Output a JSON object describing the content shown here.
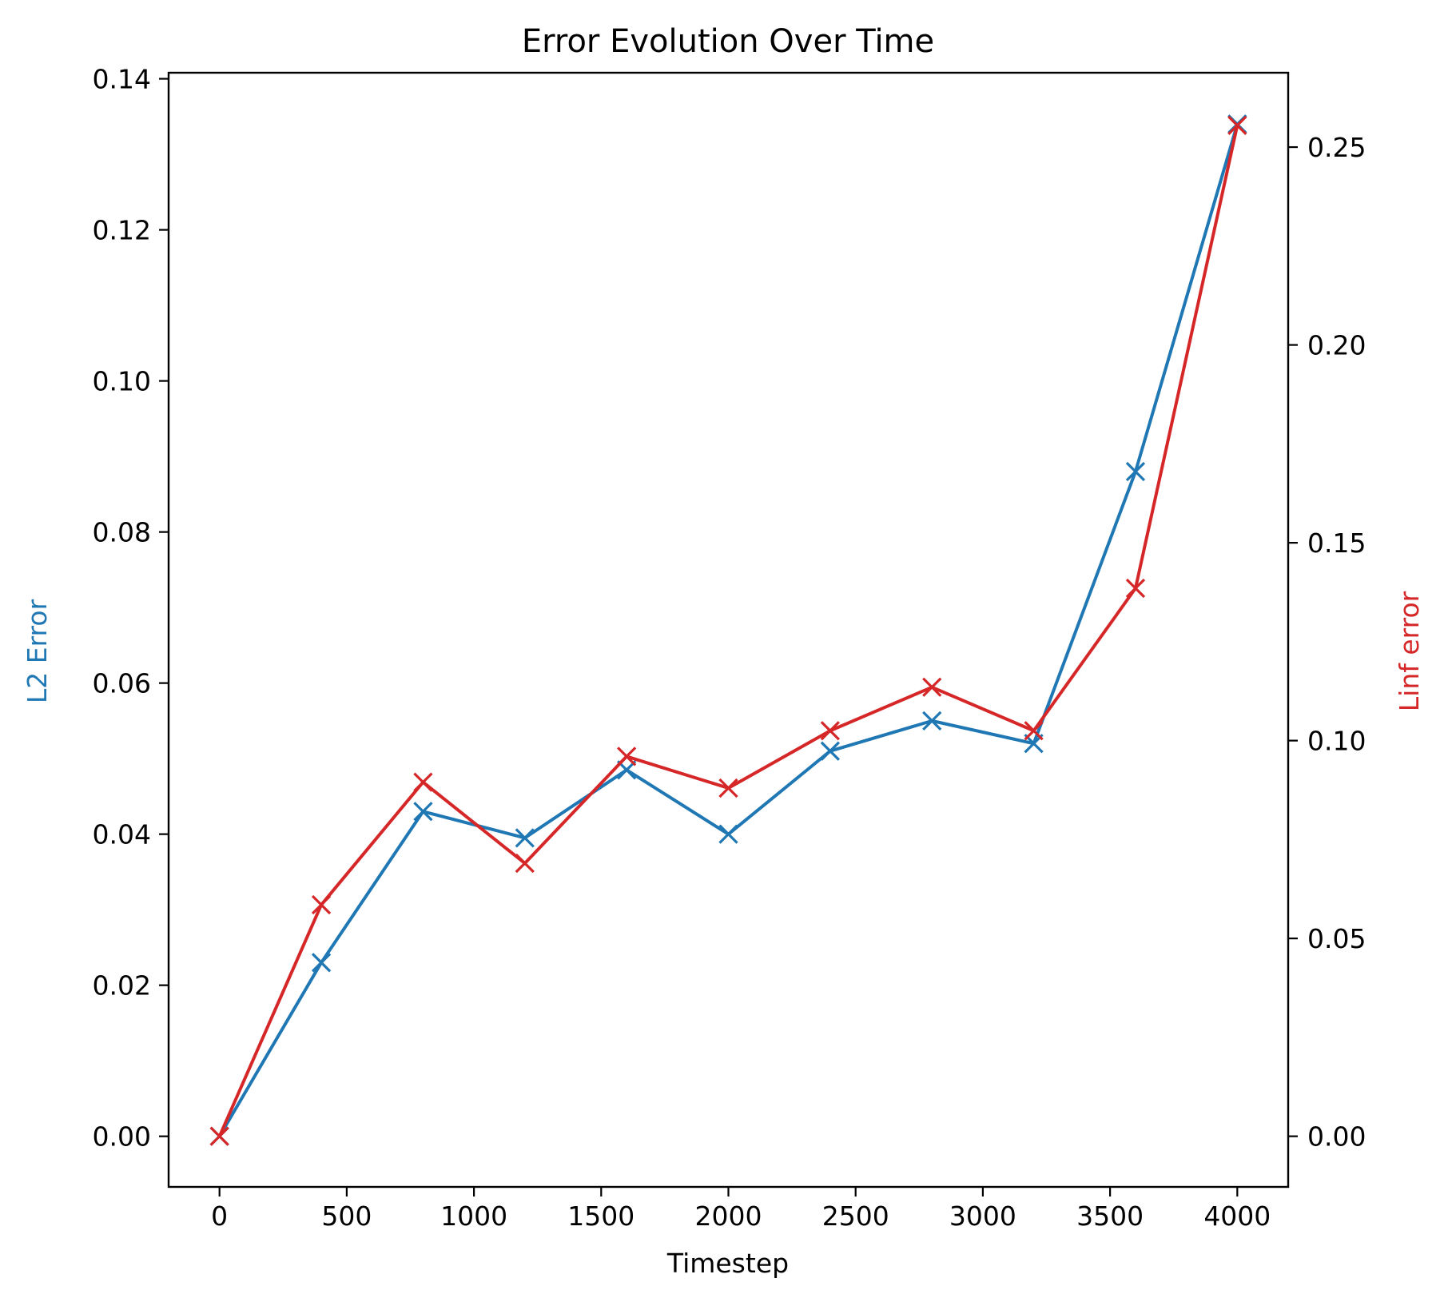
{
  "chart_data": {
    "type": "line",
    "title": "Error Evolution Over Time",
    "xlabel": "Timestep",
    "ylabel_left": "L2 Error",
    "ylabel_right": "Linf error",
    "xlim": [
      -200,
      4200
    ],
    "ylim_left": [
      -0.0067,
      0.1408
    ],
    "ylim_right": [
      -0.0128,
      0.2688
    ],
    "x_ticks": [
      0,
      500,
      1000,
      1500,
      2000,
      2500,
      3000,
      3500,
      4000
    ],
    "x_tick_labels": [
      "0",
      "500",
      "1000",
      "1500",
      "2000",
      "2500",
      "3000",
      "3500",
      "4000"
    ],
    "y_left_ticks": [
      0,
      0.02,
      0.04,
      0.06,
      0.08,
      0.1,
      0.12,
      0.14
    ],
    "y_left_tick_labels": [
      "0.00",
      "0.02",
      "0.04",
      "0.06",
      "0.08",
      "0.10",
      "0.12",
      "0.14"
    ],
    "y_right_ticks": [
      0,
      0.05,
      0.1,
      0.15,
      0.2,
      0.25
    ],
    "y_right_tick_labels": [
      "0.00",
      "0.05",
      "0.10",
      "0.15",
      "0.20",
      "0.25"
    ],
    "grid": false,
    "legend": "none",
    "x": [
      0,
      400,
      800,
      1200,
      1600,
      2000,
      2400,
      2800,
      3200,
      3600,
      4000
    ],
    "series": [
      {
        "axis": "left",
        "color": "#1f77b4",
        "marker": "x",
        "values": [
          0.0,
          0.023,
          0.043,
          0.0395,
          0.0485,
          0.04,
          0.051,
          0.055,
          0.052,
          0.088,
          0.134
        ]
      },
      {
        "axis": "right",
        "color": "#d62728",
        "marker": "x",
        "values": [
          0.0,
          0.0585,
          0.0895,
          0.069,
          0.096,
          0.088,
          0.1025,
          0.1135,
          0.1025,
          0.1385,
          0.2555
        ]
      }
    ]
  }
}
